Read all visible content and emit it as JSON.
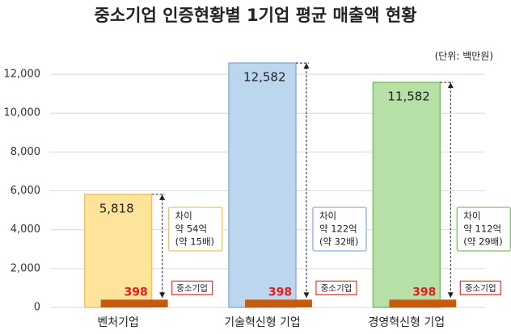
{
  "chart_data": {
    "type": "bar",
    "title": "중소기업 인증현황별 1기업 평균 매출액 현황",
    "unit": "(단위: 백만원)",
    "categories": [
      "벤처기업",
      "기술혁신형 기업",
      "경영혁신형 기업"
    ],
    "series": [
      {
        "values": [
          5818,
          12582,
          11582
        ],
        "value_labels": [
          "5,818",
          "12,582",
          "11,582"
        ],
        "colors": [
          "#fde49a",
          "#bcd6ee",
          "#b6e0a6"
        ],
        "border_colors": [
          "#f1c25e",
          "#8fb0d8",
          "#7fbf68"
        ]
      },
      {
        "name": "중소기업",
        "values": [
          398,
          398,
          398
        ],
        "color": "#c55a11"
      }
    ],
    "annotations": [
      [
        "차이",
        "약 54억",
        "(약 15배)"
      ],
      [
        "차이",
        "약 122억",
        "(약 32배)"
      ],
      [
        "차이",
        "약 112억",
        "(약 29배)"
      ]
    ],
    "ylim": [
      0,
      13000
    ],
    "yticks": [
      0,
      {
        "value": 2000,
        "label": "2,000"
      },
      {
        "value": 4000,
        "label": "4,000"
      },
      {
        "value": 6000,
        "label": "6,000"
      },
      {
        "value": 8000,
        "label": "8,000"
      },
      {
        "value": 10000,
        "label": "10,000"
      },
      {
        "value": 12000,
        "label": "12,000"
      }
    ],
    "grid": true
  }
}
